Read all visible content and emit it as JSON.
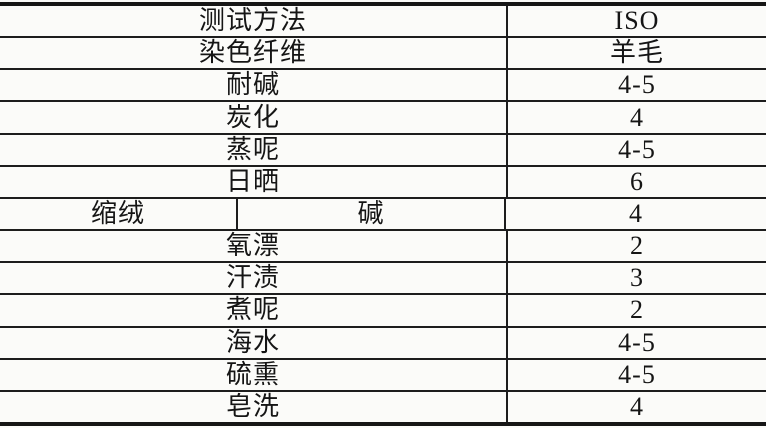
{
  "table": {
    "columns": [
      "测试方法",
      "ISO"
    ],
    "rows": [
      {
        "method": "测试方法",
        "value": "ISO"
      },
      {
        "method": "染色纤维",
        "value": "羊毛"
      },
      {
        "method": "耐碱",
        "value": "4-5"
      },
      {
        "method": "炭化",
        "value": "4"
      },
      {
        "method": "蒸呢",
        "value": "4-5"
      },
      {
        "method": "日晒",
        "value": "6"
      },
      {
        "method": "缩绒",
        "sub": "碱",
        "value": "4"
      },
      {
        "method": "氧漂",
        "value": "2"
      },
      {
        "method": "汗渍",
        "value": "3"
      },
      {
        "method": "煮呢",
        "value": "2"
      },
      {
        "method": "海水",
        "value": "4-5"
      },
      {
        "method": "硫熏",
        "value": "4-5"
      },
      {
        "method": "皂洗",
        "value": "4"
      }
    ],
    "colors": {
      "paper_background": "#fbfbf9",
      "line_color": "#1d1d1d",
      "text_color": "#151515"
    }
  }
}
